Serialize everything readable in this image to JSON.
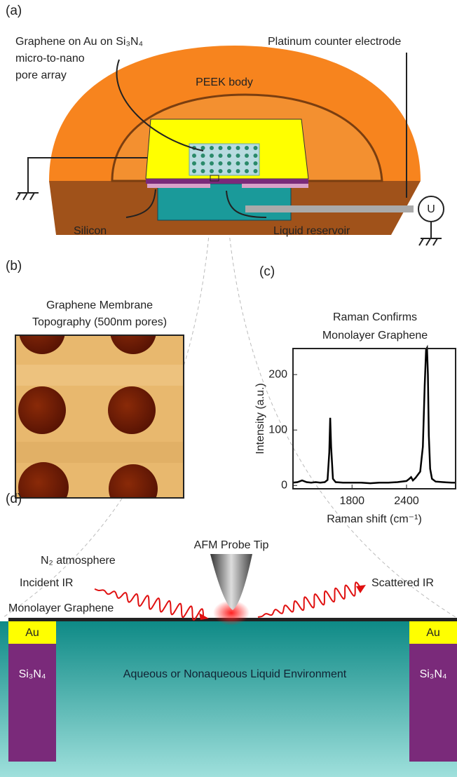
{
  "panel_a": {
    "label": "(a)",
    "annotations": [
      "Graphene on Au on Si₃N₄",
      "micro-to-nano",
      "pore array",
      "Platinum counter electrode",
      "PEEK body",
      "Silicon",
      "Liquid reservoir"
    ],
    "electrode": "U"
  },
  "panel_b": {
    "label": "(b)",
    "title": [
      "Graphene Membrane",
      "Topography (500nm pores)"
    ]
  },
  "chart_data": {
    "type": "line",
    "panel_label": "(c)",
    "title": [
      "Raman Confirms",
      "Monolayer Graphene"
    ],
    "x_label": "Raman shift (cm⁻¹)",
    "y_label": "Intensity (a.u.)",
    "x": [
      1150,
      1200,
      1250,
      1300,
      1350,
      1400,
      1450,
      1500,
      1530,
      1550,
      1560,
      1570,
      1590,
      1620,
      1700,
      1800,
      1900,
      2000,
      2100,
      2200,
      2300,
      2400,
      2430,
      2450,
      2470,
      2500,
      2550,
      2580,
      2600,
      2615,
      2625,
      2635,
      2645,
      2660,
      2680,
      2720,
      2800,
      2900,
      2940
    ],
    "values": [
      5,
      6,
      9,
      6,
      5,
      6,
      5,
      6,
      10,
      60,
      122,
      70,
      12,
      6,
      5,
      5,
      5,
      4,
      5,
      5,
      6,
      8,
      12,
      15,
      9,
      14,
      25,
      70,
      180,
      245,
      248,
      200,
      90,
      30,
      12,
      7,
      6,
      5,
      5
    ],
    "color": "#000000",
    "xlim": [
      1150,
      2940
    ],
    "ylim": [
      -6,
      247
    ],
    "xticks": [
      1800,
      2400
    ],
    "yticks": [
      0,
      100,
      200
    ]
  },
  "panel_d": {
    "label": "(d)",
    "annotations": [
      "N₂ atmosphere",
      "AFM Probe Tip",
      "Incident IR",
      "Scattered IR",
      "Monolayer Graphene",
      "Au",
      "Si₃N₄",
      "Au",
      "Si₃N₄",
      "Aqueous or Nonaqueous Liquid Environment"
    ]
  }
}
